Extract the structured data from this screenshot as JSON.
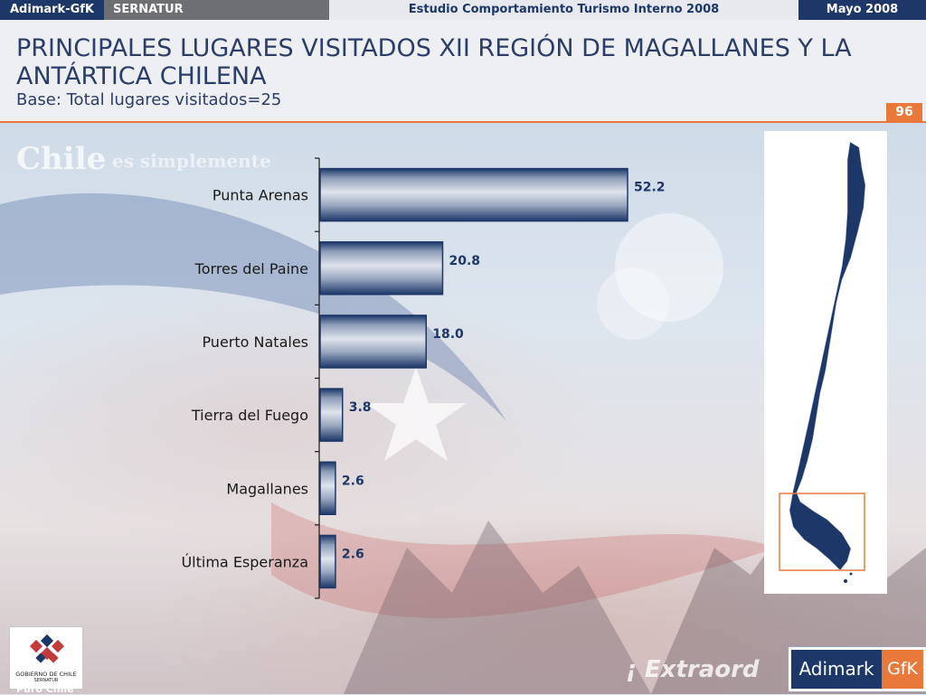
{
  "header": {
    "brand": "Adimark-GfK",
    "client": "SERNATUR",
    "study": "Estudio Comportamiento Turismo Interno 2008",
    "date": "Mayo 2008"
  },
  "slide": {
    "title": "PRINCIPALES LUGARES VISITADOS XII REGIÓN DE MAGALLANES Y LA ANTÁRTICA CHILENA",
    "subtitle": "Base: Total lugares visitados=25",
    "page_number": "96"
  },
  "background": {
    "slogan": "Chile",
    "slogan_rest": "es simplemente",
    "watermark": "¡ Extraord"
  },
  "logos": {
    "government": "GOBIERNO DE CHILE",
    "government_sub": "SERNATUR",
    "government_bottom": "Puro Chile",
    "adimark": "Adimark",
    "gfk": "GfK"
  },
  "colors": {
    "accent": "#e8793a",
    "navy": "#1c3768",
    "bar_dark": "#1c3768",
    "bar_light": "#dfe4ec",
    "map_fill": "#1c3768"
  },
  "chart_data": {
    "type": "bar",
    "orientation": "horizontal",
    "categories": [
      "Punta Arenas",
      "Torres del Paine",
      "Puerto Natales",
      "Tierra del Fuego",
      "Magallanes",
      "Última Esperanza"
    ],
    "values": [
      52.2,
      20.8,
      18.0,
      3.8,
      2.6,
      2.6
    ],
    "value_labels": [
      "52.2",
      "20.8",
      "18.0",
      "3.8",
      "2.6",
      "2.6"
    ],
    "xlim": [
      0,
      60
    ],
    "grid": false,
    "legend": "none"
  }
}
